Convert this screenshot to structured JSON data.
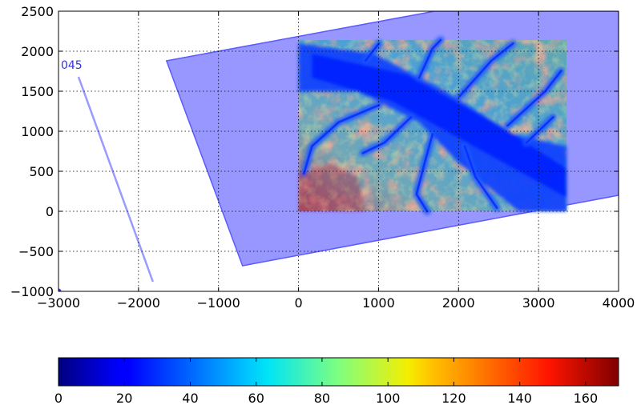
{
  "chart_data": {
    "type": "heatmap",
    "title": "",
    "xlabel": "",
    "ylabel": "",
    "xlim": [
      -3000,
      4000
    ],
    "ylim": [
      -1000,
      2500
    ],
    "grid": true,
    "xticks": [
      "−3000",
      "−2000",
      "−1000",
      "0",
      "1000",
      "2000",
      "3000",
      "4000"
    ],
    "xtick_values": [
      -3000,
      -2000,
      -1000,
      0,
      1000,
      2000,
      3000,
      4000
    ],
    "yticks": [
      "−1000",
      "−500",
      "0",
      "500",
      "1000",
      "1500",
      "2000",
      "2500"
    ],
    "ytick_values": [
      -1000,
      -500,
      0,
      500,
      1000,
      1500,
      2000,
      2500
    ],
    "footprint_polygon": [
      [
        -1650,
        1880
      ],
      [
        -700,
        -680
      ],
      [
        4000,
        200
      ],
      [
        4000,
        2500
      ],
      [
        1700,
        2500
      ]
    ],
    "footprint_color": "#6f6fff",
    "track_label": "045",
    "track_label_position": [
      -2970,
      1780
    ],
    "track_line": [
      [
        -2750,
        1680
      ],
      [
        -1820,
        -880
      ]
    ],
    "track_color": "#8888ff",
    "heatmap_extent": {
      "x": [
        0,
        3350
      ],
      "y": [
        0,
        2140
      ]
    },
    "colorbar": {
      "colormap": "jet",
      "min": 0,
      "max": 170,
      "ticks": [
        "0",
        "20",
        "40",
        "60",
        "80",
        "100",
        "120",
        "140",
        "160"
      ],
      "tick_values": [
        0,
        20,
        40,
        60,
        80,
        100,
        120,
        140,
        160
      ]
    }
  }
}
